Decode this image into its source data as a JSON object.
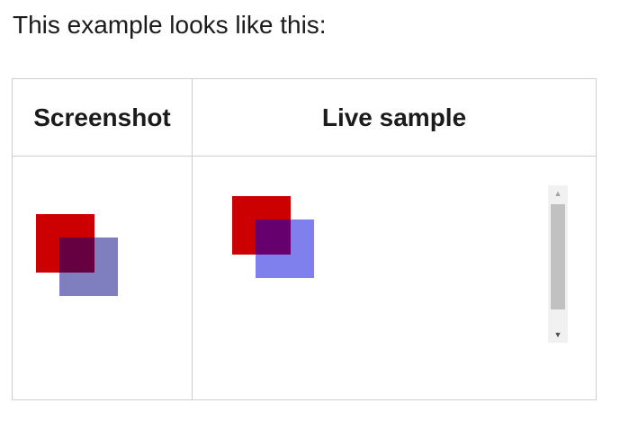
{
  "intro_text": "This example looks like this:",
  "table": {
    "headers": {
      "screenshot": "Screenshot",
      "live_sample": "Live sample"
    }
  },
  "colors": {
    "red_square": "#cc0000",
    "blue_square_screenshot": "rgba(0,0,128,0.5)",
    "blue_square_live": "rgba(0,0,220,0.5)",
    "border": "#cfcfcf",
    "scroll_thumb": "#c1c1c1"
  },
  "icons": {
    "scroll_up": "▲",
    "scroll_down": "▼"
  }
}
